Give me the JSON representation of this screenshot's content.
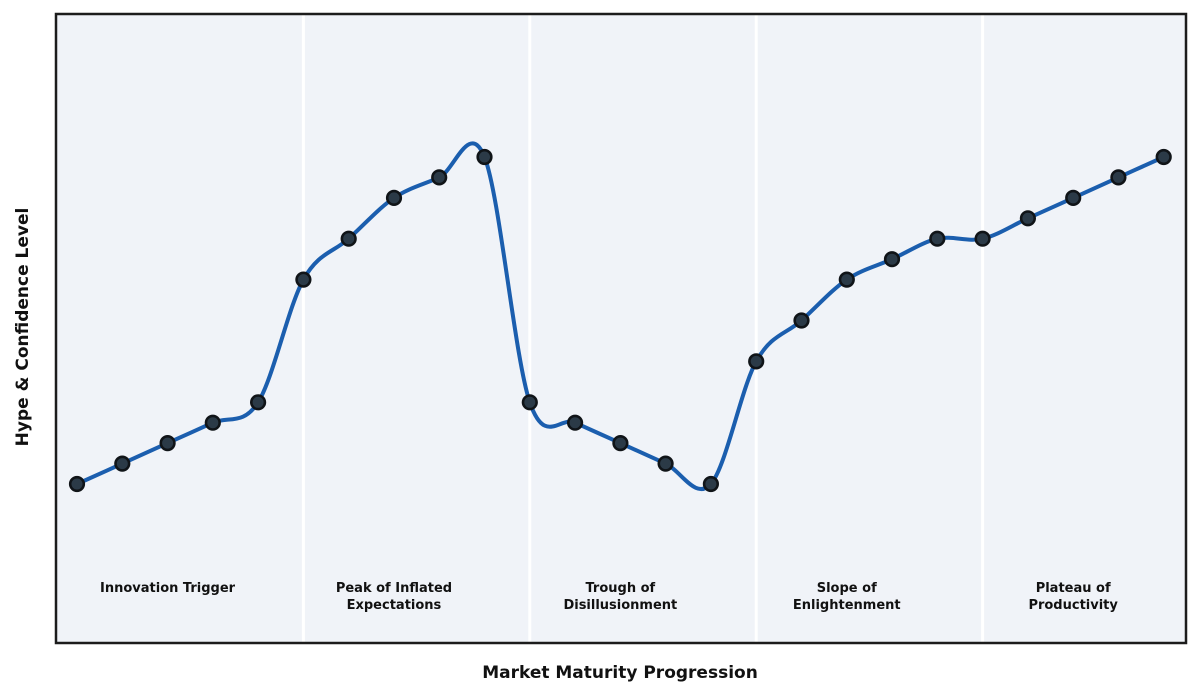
{
  "figure": {
    "x_axis_label": "Market Maturity Progression",
    "y_axis_label": "Hype & Confidence Level"
  },
  "chart_data": {
    "type": "line",
    "title": "",
    "xlabel": "Market Maturity Progression",
    "ylabel": "Hype & Confidence Level",
    "x": [
      0,
      1,
      2,
      3,
      4,
      5,
      6,
      7,
      8,
      9,
      10,
      11,
      12,
      13,
      14,
      15,
      16,
      17,
      18,
      19,
      20,
      21,
      22,
      23,
      24
    ],
    "values": [
      20,
      25,
      30,
      35,
      40,
      70,
      80,
      90,
      95,
      100,
      40,
      35,
      30,
      25,
      20,
      50,
      60,
      70,
      75,
      80,
      80,
      85,
      90,
      95,
      100
    ],
    "smooth_spline": true,
    "marker": "o",
    "grid": false,
    "legend": false,
    "tick_labels": "none",
    "xlim": [
      -0.5,
      24.5
    ],
    "ylim": [
      -19,
      135
    ],
    "phases": [
      {
        "label": "Innovation Trigger",
        "x_range": [
          0,
          4
        ],
        "label_x": 2
      },
      {
        "label": "Peak of Inflated\nExpectations",
        "x_range": [
          5,
          9
        ],
        "label_x": 7
      },
      {
        "label": "Trough of\nDisillusionment",
        "x_range": [
          10,
          14
        ],
        "label_x": 12
      },
      {
        "label": "Slope of\nEnlightenment",
        "x_range": [
          15,
          19
        ],
        "label_x": 17
      },
      {
        "label": "Plateau of\nProductivity",
        "x_range": [
          20,
          24
        ],
        "label_x": 22
      }
    ],
    "phase_boundaries_x": [
      5,
      10,
      15,
      20
    ],
    "colors": {
      "line": "#1b5eae",
      "marker_fill": "#2b3a47",
      "marker_edge": "#101418",
      "plot_background": "#f0f3f8",
      "phase_divider": "#ffffff",
      "plot_border": "#1c1c1c",
      "text": "#111111",
      "page_background": "#ffffff"
    }
  }
}
